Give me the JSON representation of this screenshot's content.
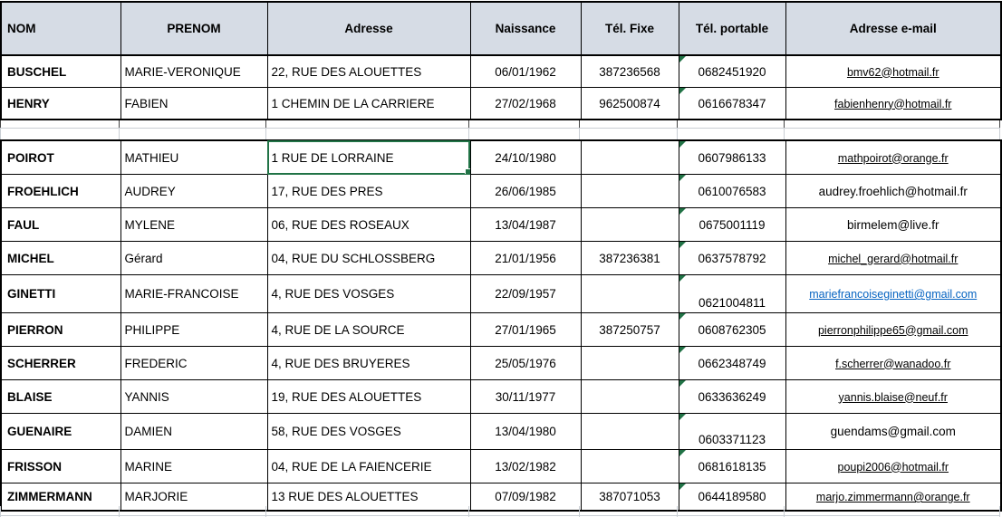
{
  "app": {
    "type": "spreadsheet-contact-list"
  },
  "colors": {
    "header_bg": "#d6dce5",
    "grid_black": "#000000",
    "grid_gray": "#c9ced4",
    "selection_green": "#217346",
    "error_flag_green": "#217346",
    "hyperlink_blue": "#0563c1"
  },
  "selection": {
    "row": "POIROT",
    "row_index": 2,
    "column": "adresse",
    "value": "1 RUE DE LORRAINE"
  },
  "table": {
    "columns": [
      {
        "key": "nom",
        "label": "NOM"
      },
      {
        "key": "prenom",
        "label": "PRENOM"
      },
      {
        "key": "adresse",
        "label": "Adresse"
      },
      {
        "key": "naissance",
        "label": "Naissance"
      },
      {
        "key": "tel_fixe",
        "label": "Tél. Fixe"
      },
      {
        "key": "tel_portable",
        "label": "Tél. portable"
      },
      {
        "key": "email",
        "label": "Adresse e-mail"
      }
    ],
    "rows": [
      {
        "nom": "BUSCHEL",
        "prenom": "MARIE-VERONIQUE",
        "adresse": "22, RUE DES ALOUETTES",
        "naissance": "06/01/1962",
        "tel_fixe": "387236568",
        "tel_portable": "0682451920",
        "portable_flag": true,
        "email": "bmv62@hotmail.fr",
        "email_style": "link"
      },
      {
        "nom": "HENRY",
        "prenom": "FABIEN",
        "adresse": "1 CHEMIN DE LA CARRIERE",
        "naissance": "27/02/1968",
        "tel_fixe": "962500874",
        "tel_portable": "0616678347",
        "portable_flag": true,
        "email": "fabienhenry@hotmail.fr",
        "email_style": "link"
      },
      {
        "nom": "POIROT",
        "prenom": "MATHIEU",
        "adresse": "1 RUE DE LORRAINE",
        "naissance": "24/10/1980",
        "tel_fixe": "",
        "tel_portable": "0607986133",
        "portable_flag": true,
        "email": "mathpoirot@orange.fr",
        "email_style": "link"
      },
      {
        "nom": "FROEHLICH",
        "prenom": "AUDREY",
        "adresse": "17, RUE DES PRES",
        "naissance": "26/06/1985",
        "tel_fixe": "",
        "tel_portable": "0610076583",
        "portable_flag": true,
        "email": "audrey.froehlich@hotmail.fr",
        "email_style": "plain"
      },
      {
        "nom": "FAUL",
        "prenom": "MYLENE",
        "adresse": "06, RUE DES ROSEAUX",
        "naissance": "13/04/1987",
        "tel_fixe": "",
        "tel_portable": "0675001119",
        "portable_flag": true,
        "email": "birmelem@live.fr",
        "email_style": "plain"
      },
      {
        "nom": "MICHEL",
        "prenom": "Gérard",
        "adresse": "04, RUE DU SCHLOSSBERG",
        "naissance": "21/01/1956",
        "tel_fixe": "387236381",
        "tel_portable": "0637578792",
        "portable_flag": true,
        "email": "michel_gerard@hotmail.fr",
        "email_style": "link"
      },
      {
        "nom": "GINETTI",
        "prenom": "MARIE-FRANCOISE",
        "adresse": "4, RUE DES VOSGES",
        "naissance": "22/09/1957",
        "tel_fixe": "",
        "tel_portable": "0621004811",
        "portable_flag": true,
        "portable_low": true,
        "email": "mariefrancoiseginetti@gmail.com",
        "email_style": "link-blue"
      },
      {
        "nom": "PIERRON",
        "prenom": "PHILIPPE",
        "adresse": "4, RUE DE LA SOURCE",
        "naissance": "27/01/1965",
        "tel_fixe": "387250757",
        "tel_portable": "0608762305",
        "portable_flag": true,
        "email": "pierronphilippe65@gmail.com",
        "email_style": "link"
      },
      {
        "nom": "SCHERRER",
        "prenom": "FREDERIC",
        "adresse": "4, RUE DES BRUYERES",
        "naissance": "25/05/1976",
        "tel_fixe": "",
        "tel_portable": "0662348749",
        "portable_flag": true,
        "email": "f.scherrer@wanadoo.fr",
        "email_style": "link"
      },
      {
        "nom": "BLAISE",
        "prenom": "YANNIS",
        "adresse": "19, RUE DES ALOUETTES",
        "naissance": "30/11/1977",
        "tel_fixe": "",
        "tel_portable": "0633636249",
        "portable_flag": true,
        "email": "yannis.blaise@neuf.fr",
        "email_style": "link"
      },
      {
        "nom": "GUENAIRE",
        "prenom": "DAMIEN",
        "adresse": "58, RUE DES VOSGES",
        "naissance": "13/04/1980",
        "tel_fixe": "",
        "tel_portable": "0603371123",
        "portable_flag": true,
        "portable_low": true,
        "email": "guendams@gmail.com",
        "email_style": "plain"
      },
      {
        "nom": "FRISSON",
        "prenom": "MARINE",
        "adresse": "04, RUE DE LA FAIENCERIE",
        "naissance": "13/02/1982",
        "tel_fixe": "",
        "tel_portable": "0681618135",
        "portable_flag": true,
        "email": "poupi2006@hotmail.fr",
        "email_style": "link"
      },
      {
        "nom": "ZIMMERMANN",
        "prenom": "MARJORIE",
        "adresse": "13 RUE DES ALOUETTES",
        "naissance": "07/09/1982",
        "tel_fixe": "387071053",
        "tel_portable": "0644189580",
        "portable_flag": true,
        "email": "marjo.zimmermann@orange.fr",
        "email_style": "link"
      }
    ]
  }
}
